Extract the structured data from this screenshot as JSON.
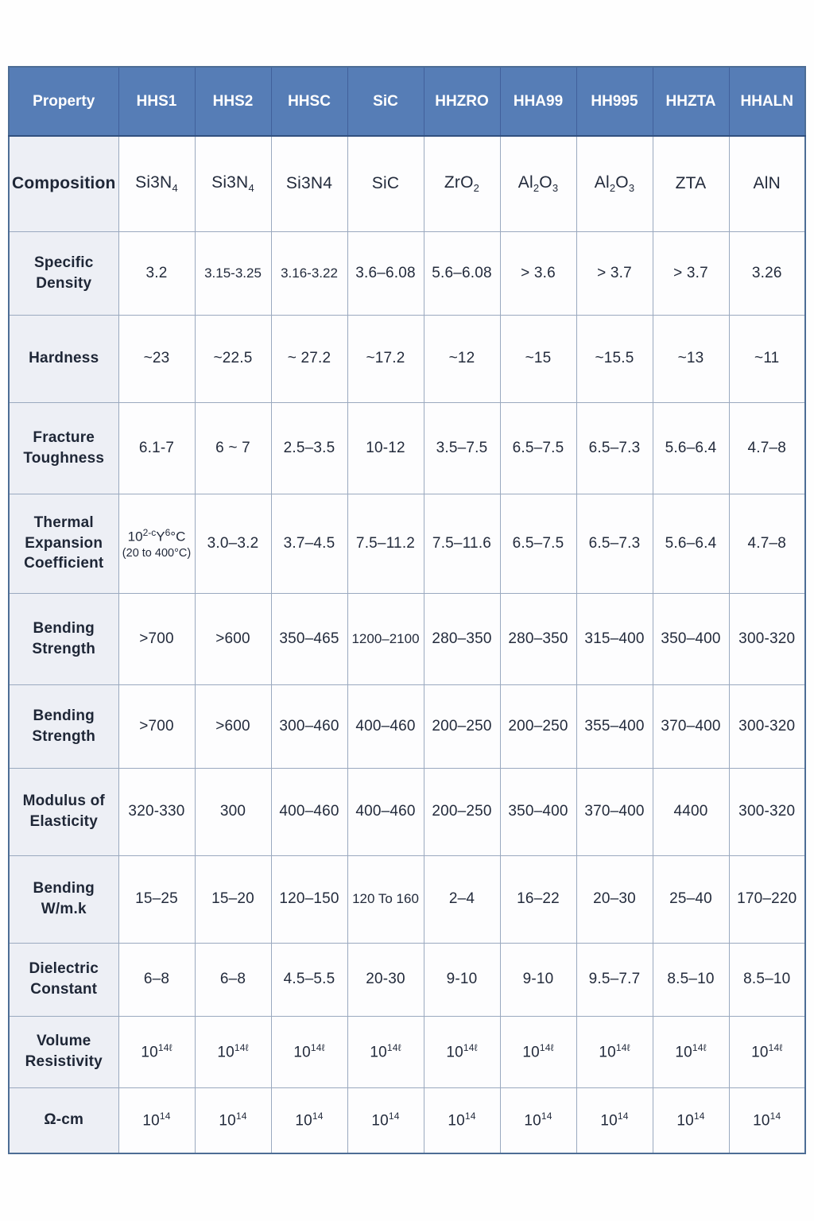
{
  "table": {
    "columns": [
      "Property",
      "HHS1",
      "HHS2",
      "HHSC",
      "SiC",
      "HHZRO",
      "HHA99",
      "HH995",
      "HHZTA",
      "HHALN"
    ],
    "rows": [
      {
        "label": "Composition",
        "cells": [
          "Si3N_{4}",
          "Si3N_{4}",
          "Si3N4",
          "SiC",
          "ZrO_{2}",
          "Al_{2}O_{3}",
          "Al_{2}O_{3}",
          "ZTA",
          "AlN"
        ]
      },
      {
        "label": "Specific Density",
        "cells": [
          "3.2",
          "3.15-3.25",
          "3.16-3.22",
          "3.6–6.08",
          "5.6–6.08",
          "> 3.6",
          "> 3.7",
          "> 3.7",
          "3.26"
        ]
      },
      {
        "label": "Hardness",
        "cells": [
          "~23",
          "~22.5",
          "~ 27.2",
          "~17.2",
          "~12",
          "~15",
          "~15.5",
          "~13",
          "~11"
        ]
      },
      {
        "label": "Fracture Toughness",
        "cells": [
          "6.1-7",
          "6 ~ 7",
          "2.5–3.5",
          "10-12",
          "3.5–7.5",
          "6.5–7.5",
          "6.5–7.3",
          "5.6–6.4",
          "4.7–8"
        ]
      },
      {
        "label": "Thermal Expansion Coefficient",
        "cells": [
          "10^{2-c}Y^{6}°C\n(20 to 400°C)",
          "3.0–3.2",
          "3.7–4.5",
          "7.5–11.2",
          "7.5–11.6",
          "6.5–7.5",
          "6.5–7.3",
          "5.6–6.4",
          "4.7–8"
        ]
      },
      {
        "label": "Bending Strength",
        "cells": [
          ">700",
          ">600",
          "350–465",
          "1200–2100",
          "280–350",
          "280–350",
          "315–400",
          "350–400",
          "300-320"
        ]
      },
      {
        "label": "Bending Strength",
        "cells": [
          ">700",
          ">600",
          "300–460",
          "400–460",
          "200–250",
          "200–250",
          "355–400",
          "370–400",
          "300-320"
        ]
      },
      {
        "label": "Modulus of Elasticity",
        "cells": [
          "320-330",
          "300",
          "400–460",
          "400–460",
          "200–250",
          "350–400",
          "370–400",
          "4400",
          "300-320"
        ]
      },
      {
        "label": "Bending W/m.k",
        "cells": [
          "15–25",
          "15–20",
          "120–150",
          "120 To 160",
          "2–4",
          "16–22",
          "20–30",
          "25–40",
          "170–220"
        ]
      },
      {
        "label": "Dielectric Constant",
        "cells": [
          "6–8",
          "6–8",
          "4.5–5.5",
          "20-30",
          "9-10",
          "9-10",
          "9.5–7.7",
          "8.5–10",
          "8.5–10"
        ]
      },
      {
        "label": "Volume Resistivity",
        "cells": [
          "10^{14ℓ}",
          "10^{14ℓ}",
          "10^{14ℓ}",
          "10^{14ℓ}",
          "10^{14ℓ}",
          "10^{14ℓ}",
          "10^{14ℓ}",
          "10^{14ℓ}",
          "10^{14ℓ}"
        ]
      },
      {
        "label": "Ω-cm",
        "cells": [
          "10^{14}",
          "10^{14}",
          "10^{14}",
          "10^{14}",
          "10^{14}",
          "10^{14}",
          "10^{14}",
          "10^{14}",
          "10^{14}"
        ]
      }
    ]
  }
}
